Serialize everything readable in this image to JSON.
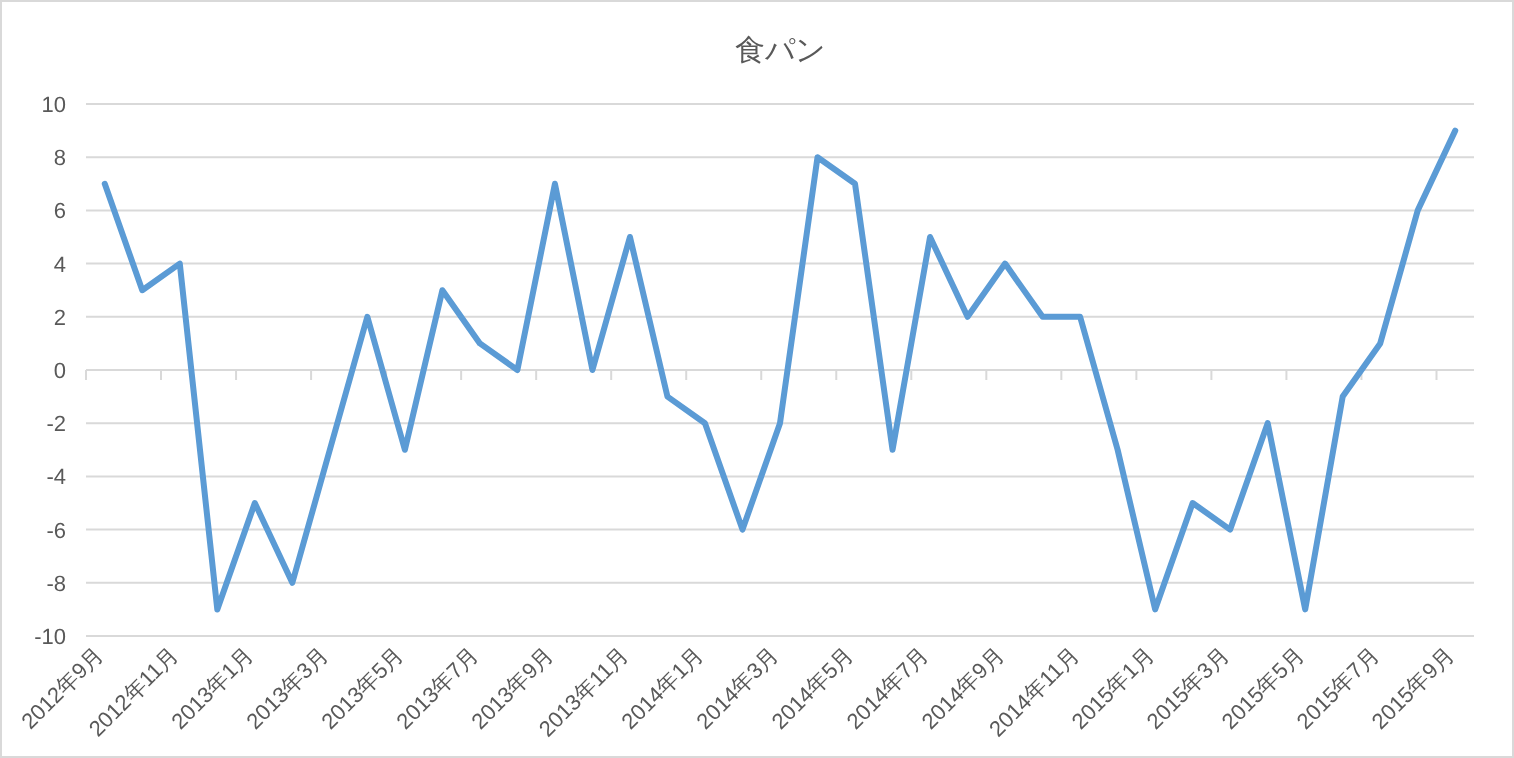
{
  "chart_data": {
    "type": "line",
    "title": "食パン",
    "categories": [
      "2012年9月",
      null,
      "2012年11月",
      null,
      "2013年1月",
      null,
      "2013年3月",
      null,
      "2013年5月",
      null,
      "2013年7月",
      null,
      "2013年9月",
      null,
      "2013年11月",
      null,
      "2014年1月",
      null,
      "2014年3月",
      null,
      "2014年5月",
      null,
      "2014年7月",
      null,
      "2014年9月",
      null,
      "2014年11月",
      null,
      "2015年1月",
      null,
      "2015年3月",
      null,
      "2015年5月",
      null,
      "2015年7月",
      null,
      "2015年9月"
    ],
    "series": [
      {
        "color": "#5b9bd5",
        "values": [
          7,
          3,
          4,
          -9,
          -5,
          -8,
          -3,
          2,
          -3,
          3,
          1,
          0,
          7,
          0,
          5,
          -1,
          -2,
          -6,
          -2,
          8,
          7,
          -3,
          5,
          2,
          4,
          2,
          2,
          -3,
          -9,
          -5,
          -6,
          -2,
          -9,
          -1,
          1,
          6,
          9
        ]
      }
    ],
    "ylim": [
      -10,
      10
    ],
    "yticks": [
      -10,
      -8,
      -6,
      -4,
      -2,
      0,
      2,
      4,
      6,
      8,
      10
    ],
    "grid": "y"
  }
}
